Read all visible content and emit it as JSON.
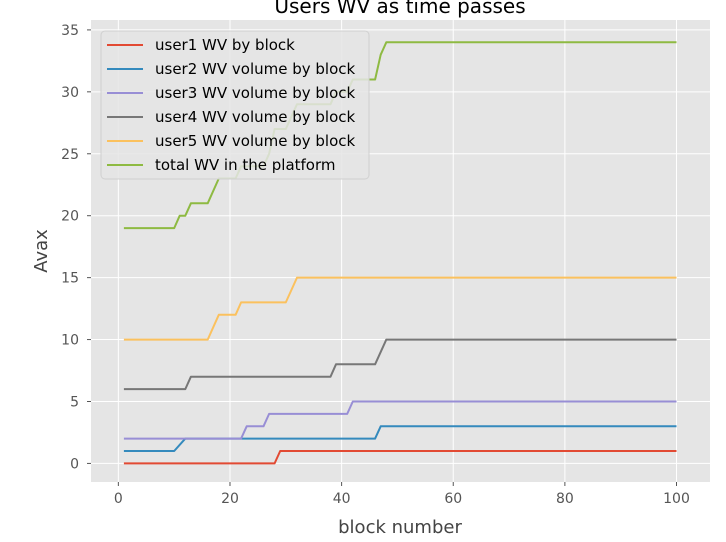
{
  "chart_data": {
    "type": "line",
    "title": "Users WV as time passes",
    "xlabel": "block number",
    "ylabel": "Avax",
    "xlim": [
      -4.9,
      106
    ],
    "ylim": [
      -1.5,
      35.8
    ],
    "xticks": [
      0,
      20,
      40,
      60,
      80,
      100
    ],
    "yticks": [
      0,
      5,
      10,
      15,
      20,
      25,
      30,
      35
    ],
    "grid": true,
    "legend_position": "top-left",
    "series": [
      {
        "name": "user1 WV by block",
        "color": "#E24A33",
        "points": [
          [
            1,
            0
          ],
          [
            28,
            0
          ],
          [
            29,
            1
          ],
          [
            100,
            1
          ]
        ]
      },
      {
        "name": "user2 WV volume by block",
        "color": "#348ABD",
        "points": [
          [
            1,
            1
          ],
          [
            10,
            1
          ],
          [
            12,
            2
          ],
          [
            46,
            2
          ],
          [
            47,
            3
          ],
          [
            100,
            3
          ]
        ]
      },
      {
        "name": "user3 WV volume by block",
        "color": "#988ED5",
        "points": [
          [
            1,
            2
          ],
          [
            22,
            2
          ],
          [
            23,
            3
          ],
          [
            26,
            3
          ],
          [
            27,
            4
          ],
          [
            41,
            4
          ],
          [
            42,
            5
          ],
          [
            100,
            5
          ]
        ]
      },
      {
        "name": "user4 WV volume by block",
        "color": "#777777",
        "points": [
          [
            1,
            6
          ],
          [
            12,
            6
          ],
          [
            13,
            7
          ],
          [
            38,
            7
          ],
          [
            39,
            8
          ],
          [
            46,
            8
          ],
          [
            48,
            10
          ],
          [
            100,
            10
          ]
        ]
      },
      {
        "name": "user5 WV volume by block",
        "color": "#FBC15E",
        "points": [
          [
            1,
            10
          ],
          [
            16,
            10
          ],
          [
            18,
            12
          ],
          [
            21,
            12
          ],
          [
            22,
            13
          ],
          [
            30,
            13
          ],
          [
            32,
            15
          ],
          [
            100,
            15
          ]
        ]
      },
      {
        "name": "total WV in the platform",
        "color": "#8EBA42",
        "points": [
          [
            1,
            19
          ],
          [
            10,
            19
          ],
          [
            11,
            20
          ],
          [
            12,
            20
          ],
          [
            13,
            21
          ],
          [
            16,
            21
          ],
          [
            18,
            23
          ],
          [
            21,
            23
          ],
          [
            22,
            24
          ],
          [
            26,
            24
          ],
          [
            27,
            25
          ],
          [
            28,
            27
          ],
          [
            30,
            27
          ],
          [
            32,
            29
          ],
          [
            38,
            29
          ],
          [
            39,
            30
          ],
          [
            41,
            30
          ],
          [
            42,
            31
          ],
          [
            46,
            31
          ],
          [
            47,
            33
          ],
          [
            48,
            34
          ],
          [
            100,
            34
          ]
        ]
      }
    ]
  }
}
